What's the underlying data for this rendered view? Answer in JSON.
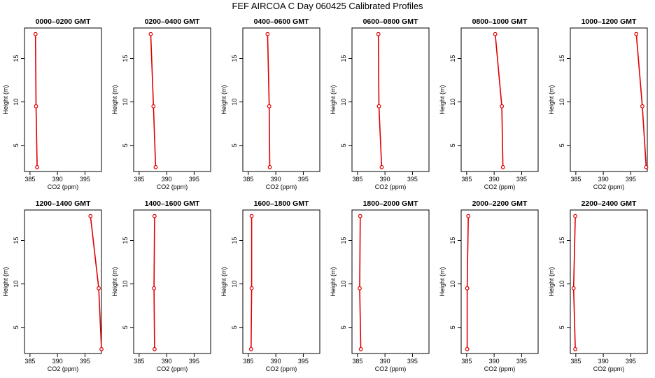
{
  "title": "FEF AIRCOA C  Day 060425  Calibrated Profiles",
  "colors": {
    "line": "#e00000",
    "marker": "#e00000",
    "axis": "#000000"
  },
  "chart_data": [
    {
      "type": "line",
      "title": "0000–0200 GMT",
      "xlabel": "CO2 (ppm)",
      "ylabel": "Height (m)",
      "xlim": [
        384,
        398
      ],
      "ylim": [
        2,
        18.5
      ],
      "xticks": [
        385,
        390,
        395
      ],
      "yticks": [
        5,
        10,
        15
      ],
      "series": [
        {
          "x": [
            386.3,
            386.1,
            386.0
          ],
          "y": [
            2.5,
            9.5,
            17.8
          ]
        }
      ]
    },
    {
      "type": "line",
      "title": "0200–0400 GMT",
      "xlabel": "CO2 (ppm)",
      "ylabel": "Height (m)",
      "xlim": [
        384,
        398
      ],
      "ylim": [
        2,
        18.5
      ],
      "xticks": [
        385,
        390,
        395
      ],
      "yticks": [
        5,
        10,
        15
      ],
      "series": [
        {
          "x": [
            388.0,
            387.6,
            387.1
          ],
          "y": [
            2.5,
            9.5,
            17.8
          ]
        }
      ]
    },
    {
      "type": "line",
      "title": "0400–0600 GMT",
      "xlabel": "CO2 (ppm)",
      "ylabel": "Height (m)",
      "xlim": [
        384,
        398
      ],
      "ylim": [
        2,
        18.5
      ],
      "xticks": [
        385,
        390,
        395
      ],
      "yticks": [
        5,
        10,
        15
      ],
      "series": [
        {
          "x": [
            388.9,
            388.8,
            388.5
          ],
          "y": [
            2.5,
            9.5,
            17.8
          ]
        }
      ]
    },
    {
      "type": "line",
      "title": "0600–0800 GMT",
      "xlabel": "CO2 (ppm)",
      "ylabel": "Height (m)",
      "xlim": [
        384,
        398
      ],
      "ylim": [
        2,
        18.5
      ],
      "xticks": [
        385,
        390,
        395
      ],
      "yticks": [
        5,
        10,
        15
      ],
      "series": [
        {
          "x": [
            389.4,
            388.9,
            388.8
          ],
          "y": [
            2.5,
            9.5,
            17.8
          ]
        }
      ]
    },
    {
      "type": "line",
      "title": "0800–1000 GMT",
      "xlabel": "CO2 (ppm)",
      "ylabel": "Height (m)",
      "xlim": [
        384,
        398
      ],
      "ylim": [
        2,
        18.5
      ],
      "xticks": [
        385,
        390,
        395
      ],
      "yticks": [
        5,
        10,
        15
      ],
      "series": [
        {
          "x": [
            391.6,
            391.4,
            390.2
          ],
          "y": [
            2.5,
            9.5,
            17.8
          ]
        }
      ]
    },
    {
      "type": "line",
      "title": "1000–1200 GMT",
      "xlabel": "CO2 (ppm)",
      "ylabel": "Height (m)",
      "xlim": [
        384,
        398
      ],
      "ylim": [
        2,
        18.5
      ],
      "xticks": [
        385,
        390,
        395
      ],
      "yticks": [
        5,
        10,
        15
      ],
      "series": [
        {
          "x": [
            397.8,
            397.1,
            396.0
          ],
          "y": [
            2.5,
            9.5,
            17.8
          ]
        }
      ]
    },
    {
      "type": "line",
      "title": "1200–1400 GMT",
      "xlabel": "CO2 (ppm)",
      "ylabel": "Height (m)",
      "xlim": [
        384,
        398
      ],
      "ylim": [
        2,
        18.5
      ],
      "xticks": [
        385,
        390,
        395
      ],
      "yticks": [
        5,
        10,
        15
      ],
      "series": [
        {
          "x": [
            398.0,
            397.5,
            396.0
          ],
          "y": [
            2.5,
            9.5,
            17.8
          ]
        }
      ]
    },
    {
      "type": "line",
      "title": "1400–1600 GMT",
      "xlabel": "CO2 (ppm)",
      "ylabel": "Height (m)",
      "xlim": [
        384,
        398
      ],
      "ylim": [
        2,
        18.5
      ],
      "xticks": [
        385,
        390,
        395
      ],
      "yticks": [
        5,
        10,
        15
      ],
      "series": [
        {
          "x": [
            387.8,
            387.7,
            387.8
          ],
          "y": [
            2.5,
            9.5,
            17.8
          ]
        }
      ]
    },
    {
      "type": "line",
      "title": "1600–1800 GMT",
      "xlabel": "CO2 (ppm)",
      "ylabel": "Height (m)",
      "xlim": [
        384,
        398
      ],
      "ylim": [
        2,
        18.5
      ],
      "xticks": [
        385,
        390,
        395
      ],
      "yticks": [
        5,
        10,
        15
      ],
      "series": [
        {
          "x": [
            385.5,
            385.6,
            385.6
          ],
          "y": [
            2.5,
            9.5,
            17.8
          ]
        }
      ]
    },
    {
      "type": "line",
      "title": "1800–2000 GMT",
      "xlabel": "CO2 (ppm)",
      "ylabel": "Height (m)",
      "xlim": [
        384,
        398
      ],
      "ylim": [
        2,
        18.5
      ],
      "xticks": [
        385,
        390,
        395
      ],
      "yticks": [
        5,
        10,
        15
      ],
      "series": [
        {
          "x": [
            385.6,
            385.4,
            385.5
          ],
          "y": [
            2.5,
            9.5,
            17.8
          ]
        }
      ]
    },
    {
      "type": "line",
      "title": "2000–2200 GMT",
      "xlabel": "CO2 (ppm)",
      "ylabel": "Height (m)",
      "xlim": [
        384,
        398
      ],
      "ylim": [
        2,
        18.5
      ],
      "xticks": [
        385,
        390,
        395
      ],
      "yticks": [
        5,
        10,
        15
      ],
      "series": [
        {
          "x": [
            385.1,
            385.1,
            385.3
          ],
          "y": [
            2.5,
            9.5,
            17.8
          ]
        }
      ]
    },
    {
      "type": "line",
      "title": "2200–2400 GMT",
      "xlabel": "CO2 (ppm)",
      "ylabel": "Height (m)",
      "xlim": [
        384,
        398
      ],
      "ylim": [
        2,
        18.5
      ],
      "xticks": [
        385,
        390,
        395
      ],
      "yticks": [
        5,
        10,
        15
      ],
      "series": [
        {
          "x": [
            384.9,
            384.6,
            384.9
          ],
          "y": [
            2.5,
            9.5,
            17.8
          ]
        }
      ]
    }
  ]
}
